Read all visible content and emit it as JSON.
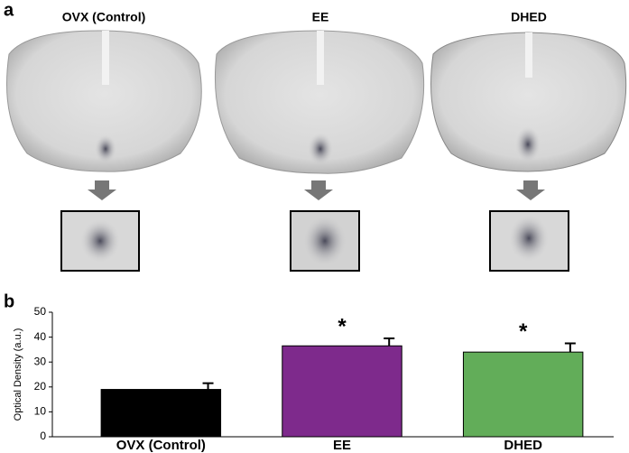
{
  "panels": [
    "a",
    "b"
  ],
  "image_labels": [
    "OVX (Control)",
    "EE",
    "DHED"
  ],
  "chart_data": {
    "type": "bar",
    "ylabel": "Optical Density (a.u.)",
    "categories": [
      "OVX (Control)",
      "EE",
      "DHED"
    ],
    "values": [
      19,
      36.5,
      34
    ],
    "errors": [
      2.5,
      3,
      3.5
    ],
    "colors": [
      "#000000",
      "#7e2a8c",
      "#62ad59"
    ],
    "annotations": [
      {
        "text": "*",
        "x": "EE"
      },
      {
        "text": "*",
        "x": "DHED"
      }
    ],
    "ylim": [
      0,
      50
    ],
    "yticks": [
      0,
      10,
      20,
      30,
      40,
      50
    ]
  }
}
